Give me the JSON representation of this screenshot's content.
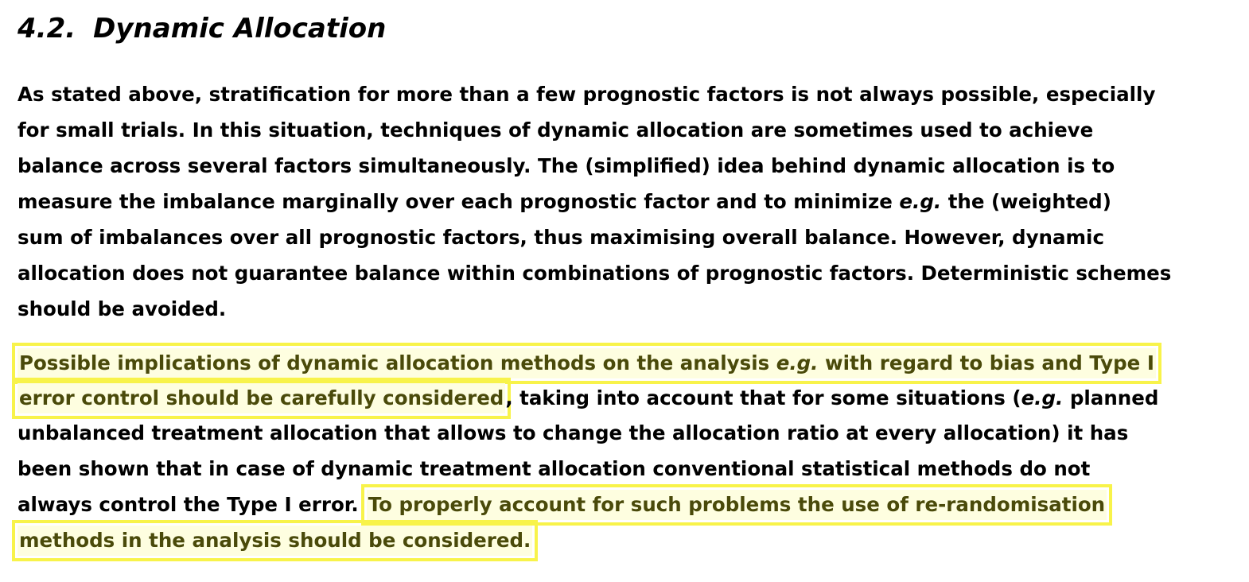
{
  "section": {
    "number": "4.2.",
    "title": "Dynamic Allocation"
  },
  "paragraph1": {
    "line1": "As stated above, stratification for more than a few prognostic factors is not always possible, especially",
    "line2": "for small trials.  In this situation, techniques of dynamic allocation are sometimes used to achieve",
    "line3": "balance across several factors simultaneously. The (simplified) idea behind dynamic allocation is to",
    "line4_a": "measure the imbalance marginally over each prognostic factor and to minimize ",
    "line4_em": "e.g.",
    "line4_b": " the (weighted)",
    "line5": "sum of imbalances over all prognostic factors, thus maximising overall balance. However, dynamic",
    "line6": "allocation does not guarantee balance within combinations of prognostic factors. Deterministic schemes",
    "line7": "should be avoided."
  },
  "paragraph2": {
    "hl1_line1_a": "Possible implications of dynamic allocation methods on the analysis ",
    "hl1_line1_em": "e.g.",
    "hl1_line1_b": " with regard to bias and Type I",
    "hl1_line2": "error control should be carefully considered",
    "line2_rest_a": ", taking into account that for some situations (",
    "line2_rest_em": "e.g.",
    "line2_rest_b": " planned",
    "line3": "unbalanced treatment allocation that allows to change the allocation ratio at every allocation) it has",
    "line4": "been shown that in case of dynamic treatment allocation conventional statistical methods do not",
    "line5_plain": "always control the Type I error.",
    "hl2_line1": "To properly account for such problems the use of re-randomisation",
    "hl2_line2": "methods in the analysis should be considered",
    "end_period": "."
  }
}
